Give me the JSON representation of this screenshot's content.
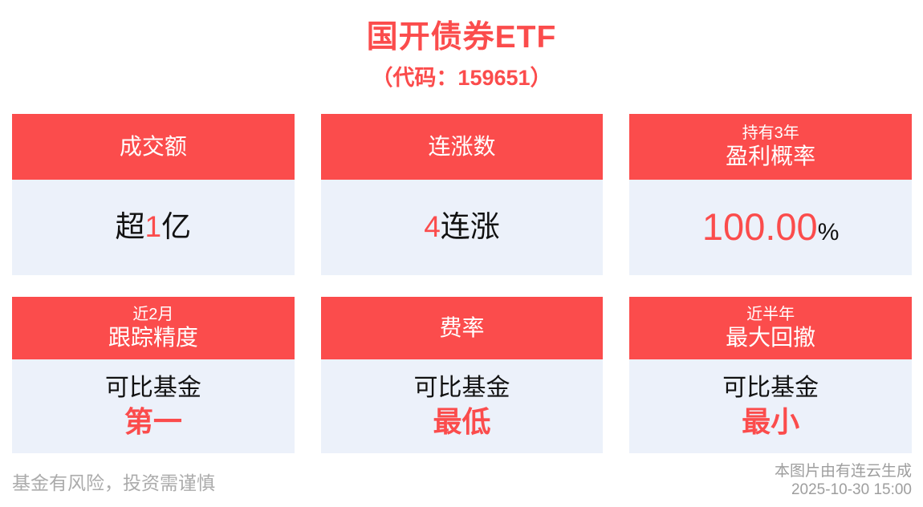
{
  "header": {
    "title": "国开债券ETF",
    "subtitle": "（代码：159651）"
  },
  "cards": [
    {
      "name": "turnover",
      "header_small": "",
      "header_main": "成交额",
      "value_pre": "超",
      "value_highlight": "1",
      "value_post": "亿",
      "value_line2": ""
    },
    {
      "name": "consecutive-gains",
      "header_small": "",
      "header_main": "连涨数",
      "value_pre": "",
      "value_highlight": "4",
      "value_post": "连涨",
      "value_line2": ""
    },
    {
      "name": "profit-probability",
      "header_small": "持有3年",
      "header_main": "盈利概率",
      "value_pre": "",
      "value_highlight": "100.00",
      "value_post": "%",
      "value_line2": ""
    },
    {
      "name": "tracking-precision",
      "header_small": "近2月",
      "header_main": "跟踪精度",
      "value_pre": "可比基金",
      "value_highlight": "",
      "value_post": "",
      "value_line2": "第一"
    },
    {
      "name": "fee-rate",
      "header_small": "",
      "header_main": "费率",
      "value_pre": "可比基金",
      "value_highlight": "",
      "value_post": "",
      "value_line2": "最低"
    },
    {
      "name": "max-drawdown",
      "header_small": "近半年",
      "header_main": "最大回撤",
      "value_pre": "可比基金",
      "value_highlight": "",
      "value_post": "",
      "value_line2": "最小"
    }
  ],
  "footer": {
    "disclaimer": "基金有风险，投资需谨慎",
    "source": "本图片由有连云生成",
    "timestamp": "2025-10-30 15:00"
  },
  "colors": {
    "accent": "#FB4C4C",
    "card_body_bg": "#ECF1FA",
    "value_text": "#111111",
    "footer_text": "#9E9E9E"
  }
}
